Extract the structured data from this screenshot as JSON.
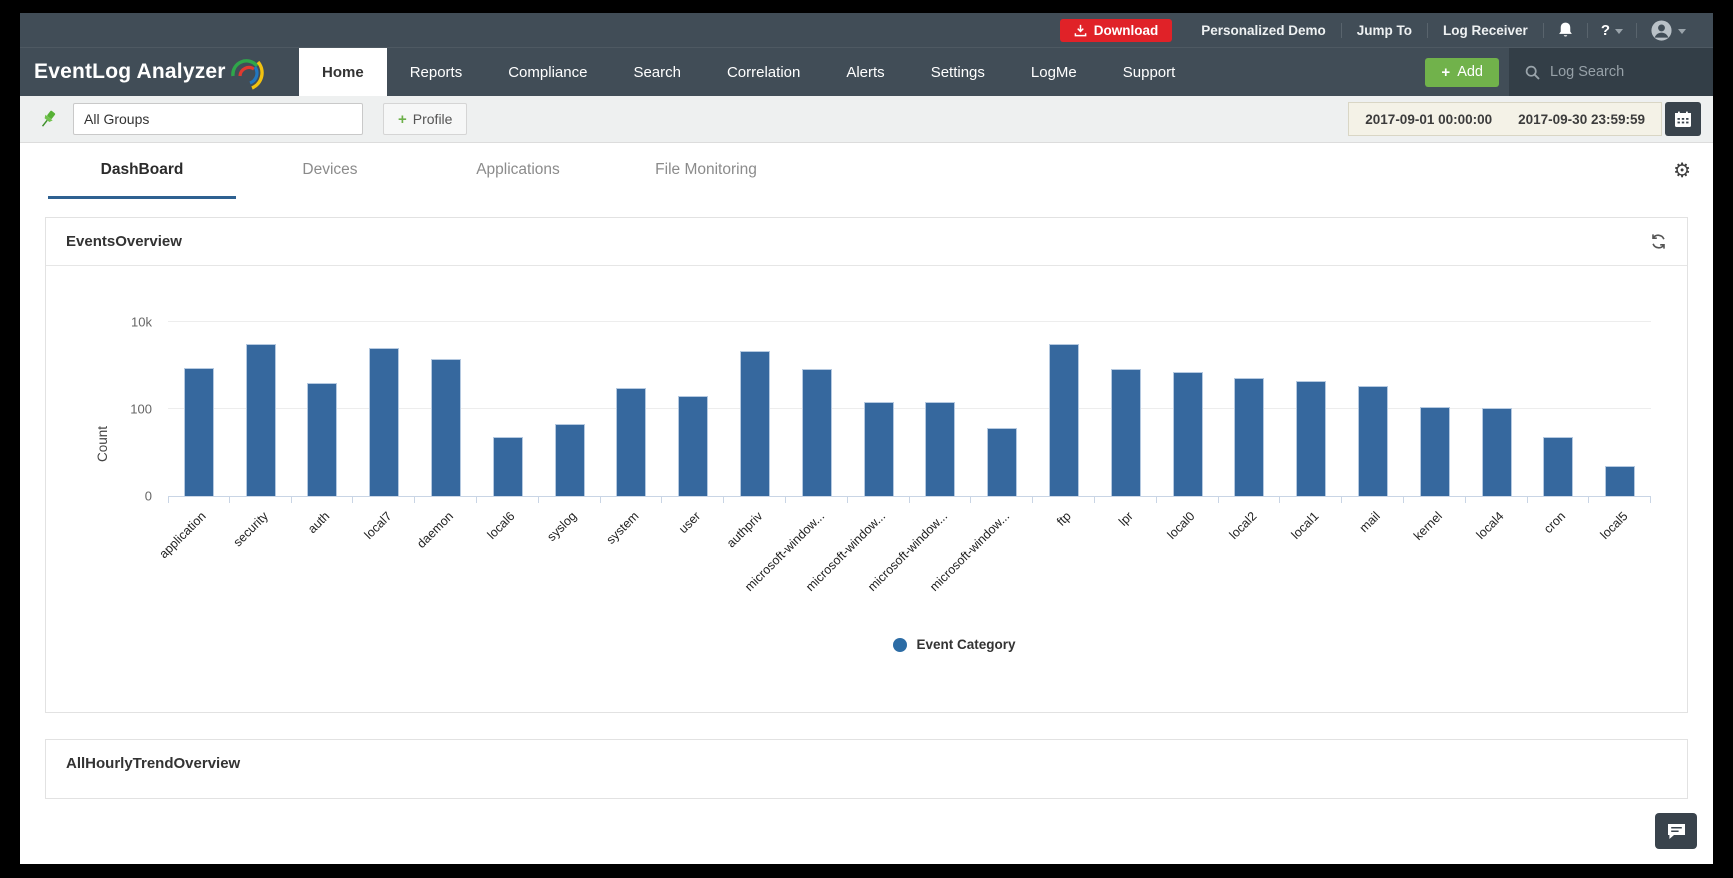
{
  "header": {
    "logo_text": "EventLog Analyzer",
    "topbar": {
      "download_label": "Download",
      "links": [
        "Personalized Demo",
        "Jump To",
        "Log Receiver"
      ],
      "help_label": "?"
    },
    "nav_items": [
      {
        "label": "Home",
        "active": true
      },
      {
        "label": "Reports",
        "active": false
      },
      {
        "label": "Compliance",
        "active": false
      },
      {
        "label": "Search",
        "active": false
      },
      {
        "label": "Correlation",
        "active": false
      },
      {
        "label": "Alerts",
        "active": false
      },
      {
        "label": "Settings",
        "active": false
      },
      {
        "label": "LogMe",
        "active": false
      },
      {
        "label": "Support",
        "active": false
      }
    ],
    "add_button_label": "Add",
    "log_search_placeholder": "Log Search"
  },
  "toolbar": {
    "group_filter_value": "All Groups",
    "profile_button_label": "Profile",
    "date_range": {
      "start": "2017-09-01 00:00:00",
      "end": "2017-09-30 23:59:59"
    }
  },
  "dashboard_tabs": [
    {
      "label": "DashBoard",
      "active": true
    },
    {
      "label": "Devices",
      "active": false
    },
    {
      "label": "Applications",
      "active": false
    },
    {
      "label": "File Monitoring",
      "active": false
    }
  ],
  "panels": {
    "events_overview_title": "EventsOverview",
    "hourly_trend_title": "AllHourlyTrendOverview"
  },
  "chart_data": {
    "type": "bar",
    "title": "EventsOverview",
    "xlabel": "",
    "ylabel": "Count",
    "y_scale": "log",
    "y_tick_labels": [
      "0",
      "100",
      "10k"
    ],
    "grid": true,
    "bar_color": "#36689e",
    "legend": [
      {
        "label": "Event Category",
        "color": "#2c6ca5",
        "position": "bottom"
      }
    ],
    "categories": [
      "application",
      "security",
      "auth",
      "local7",
      "daemon",
      "local6",
      "syslog",
      "system",
      "user",
      "authpriv",
      "microsoft-window...",
      "microsoft-window...",
      "microsoft-window...",
      "microsoft-window...",
      "ftp",
      "lpr",
      "local0",
      "local2",
      "local1",
      "mail",
      "kernel",
      "local4",
      "cron",
      "local5"
    ],
    "values": [
      880,
      3100,
      400,
      2500,
      1400,
      23,
      45,
      300,
      200,
      2150,
      830,
      145,
      145,
      37,
      3100,
      830,
      710,
      520,
      440,
      340,
      110,
      105,
      23,
      5
    ]
  },
  "colors": {
    "header_bg": "#414d57",
    "accent_red": "#e02228",
    "accent_green": "#71b24b",
    "tab_underline": "#2e6191",
    "bar_fill": "#36689e"
  }
}
